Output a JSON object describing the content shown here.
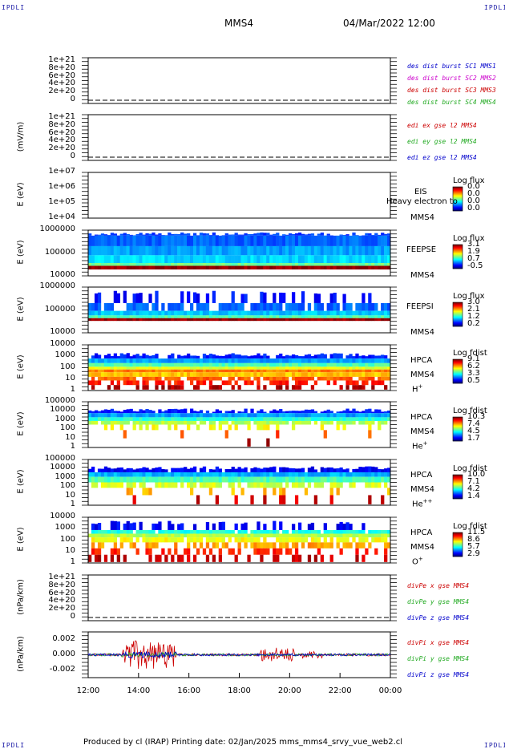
{
  "header": {
    "left_logo": "IPDLI",
    "right_logo": "IPDLI",
    "spacecraft": "MMS4",
    "datetime": "04/Mar/2022 12:00"
  },
  "footer": {
    "left_logo": "IPDLI",
    "right_logo": "IPDLI",
    "text": "Produced by cl (IRAP)   Printing date: 02/Jan/2025   mms_mms4_srvy_vue_web2.cl"
  },
  "chart_data": {
    "type": "stacked-panels",
    "x_axis": {
      "ticks": [
        "12:00",
        "14:00",
        "16:00",
        "18:00",
        "20:00",
        "22:00",
        "00:00"
      ]
    },
    "panels": [
      {
        "id": "p1",
        "type": "line",
        "ylabel": "",
        "yticks": [
          "1e+21",
          "8e+20",
          "6e+20",
          "4e+20",
          "2e+20",
          "0"
        ],
        "series": [
          {
            "name": "des dist burst SC1 MMS1",
            "color": "#0000cc"
          },
          {
            "name": "des dist burst SC2 MMS2",
            "color": "#cc00cc"
          },
          {
            "name": "des dist burst SC3 MMS3",
            "color": "#cc0000"
          },
          {
            "name": "des dist burst SC4 MMS4",
            "color": "#22aa22"
          }
        ]
      },
      {
        "id": "p2",
        "type": "line",
        "ylabel": "(mV/m)",
        "yticks": [
          "1e+21",
          "8e+20",
          "6e+20",
          "4e+20",
          "2e+20",
          "0"
        ],
        "series": [
          {
            "name": "edi ex gse l2 MMS4",
            "color": "#cc0000"
          },
          {
            "name": "edi ey gse l2 MMS4",
            "color": "#22aa22"
          },
          {
            "name": "edi ez gse l2 MMS4",
            "color": "#0000cc"
          }
        ]
      },
      {
        "id": "p3",
        "type": "heatmap",
        "ylabel": "E (eV)",
        "yticks": [
          "1e+07",
          "1e+06",
          "1e+05",
          "1e+04"
        ],
        "instrument": [
          "EIS",
          "MMS4"
        ],
        "overlay_text": "Heavy electron to",
        "colorbar": {
          "title": "Log flux",
          "ticks": [
            "0.0",
            "0.0",
            "0.0",
            "0.0"
          ]
        }
      },
      {
        "id": "p4",
        "type": "heatmap",
        "ylabel": "E (eV)",
        "yticks": [
          "1000000",
          "100000",
          "10000"
        ],
        "instrument": [
          "FEEPSE",
          "MMS4"
        ],
        "colorbar": {
          "title": "Log flux",
          "ticks": [
            "3.1",
            "1.9",
            "0.7",
            "-0.5"
          ]
        }
      },
      {
        "id": "p5",
        "type": "heatmap",
        "ylabel": "E (eV)",
        "yticks": [
          "1000000",
          "100000",
          "10000"
        ],
        "instrument": [
          "FEEPSI",
          "MMS4"
        ],
        "colorbar": {
          "title": "Log flux",
          "ticks": [
            "3.0",
            "2.1",
            "1.2",
            "0.2"
          ]
        }
      },
      {
        "id": "p6",
        "type": "heatmap",
        "ylabel": "E (eV)",
        "yticks": [
          "10000",
          "1000",
          "100",
          "10",
          "1"
        ],
        "instrument": [
          "HPCA",
          "MMS4"
        ],
        "species": "H",
        "species_sup": "+",
        "colorbar": {
          "title": "Log fdist",
          "ticks": [
            "9.1",
            "6.2",
            "3.3",
            "0.5"
          ]
        }
      },
      {
        "id": "p7",
        "type": "heatmap",
        "ylabel": "E (eV)",
        "yticks": [
          "100000",
          "10000",
          "1000",
          "100",
          "10",
          "1"
        ],
        "instrument": [
          "HPCA",
          "MMS4"
        ],
        "species": "He",
        "species_sup": "+",
        "colorbar": {
          "title": "Log fdist",
          "ticks": [
            "10.3",
            "7.4",
            "4.5",
            "1.7"
          ]
        }
      },
      {
        "id": "p8",
        "type": "heatmap",
        "ylabel": "E (eV)",
        "yticks": [
          "100000",
          "10000",
          "1000",
          "100",
          "10",
          "1"
        ],
        "instrument": [
          "HPCA",
          "MMS4"
        ],
        "species": "He",
        "species_sup": "++",
        "colorbar": {
          "title": "Log fdist",
          "ticks": [
            "10.0",
            "7.1",
            "4.2",
            "1.4"
          ]
        }
      },
      {
        "id": "p9",
        "type": "heatmap",
        "ylabel": "E (eV)",
        "yticks": [
          "10000",
          "1000",
          "100",
          "10",
          "1"
        ],
        "instrument": [
          "HPCA",
          "MMS4"
        ],
        "species": "O",
        "species_sup": "+",
        "colorbar": {
          "title": "Log fdist",
          "ticks": [
            "11.5",
            "8.6",
            "5.7",
            "2.9"
          ]
        }
      },
      {
        "id": "p10",
        "type": "line",
        "ylabel": "(nPa/km)",
        "yticks": [
          "1e+21",
          "8e+20",
          "6e+20",
          "4e+20",
          "2e+20",
          "0"
        ],
        "series": [
          {
            "name": "divPe x gse MMS4",
            "color": "#cc0000"
          },
          {
            "name": "divPe y gse MMS4",
            "color": "#22aa22"
          },
          {
            "name": "divPe z gse MMS4",
            "color": "#0000cc"
          }
        ]
      },
      {
        "id": "p11",
        "type": "line",
        "ylabel": "(nPa/km)",
        "yticks": [
          "0.002",
          "0.000",
          "-0.002"
        ],
        "ylim": [
          -0.003,
          0.003
        ],
        "series": [
          {
            "name": "divPi x gse MMS4",
            "color": "#cc0000"
          },
          {
            "name": "divPi y gse MMS4",
            "color": "#22aa22"
          },
          {
            "name": "divPi z gse MMS4",
            "color": "#0000cc"
          }
        ]
      }
    ]
  }
}
